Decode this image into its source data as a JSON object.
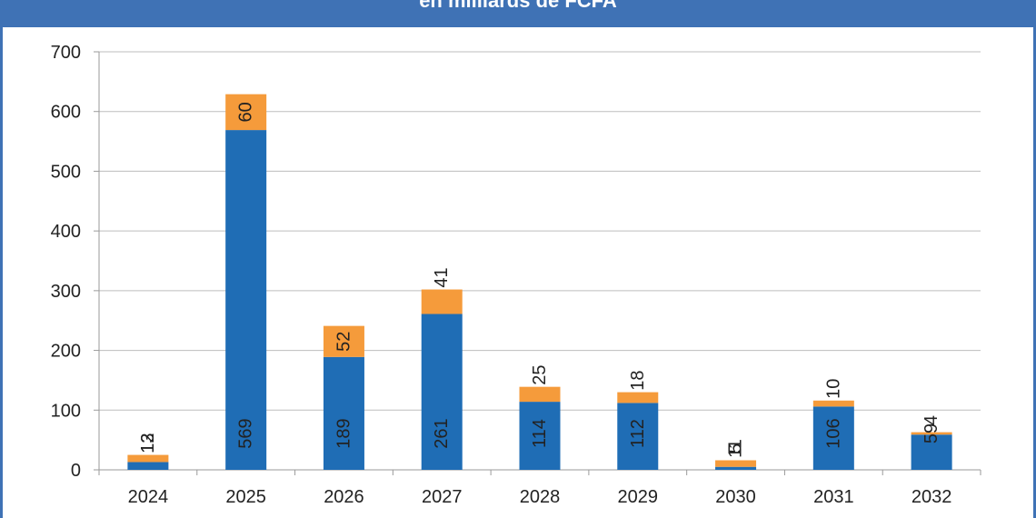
{
  "chart_data": {
    "type": "bar",
    "stacked": true,
    "title": "en milliards de FCFA",
    "categories": [
      "2024",
      "2025",
      "2026",
      "2027",
      "2028",
      "2029",
      "2030",
      "2031",
      "2032"
    ],
    "series": [
      {
        "values": [
          13,
          569,
          189,
          261,
          114,
          112,
          5,
          106,
          59
        ],
        "color": "#1f6db5"
      },
      {
        "values": [
          12,
          60,
          52,
          41,
          25,
          18,
          11,
          10,
          4
        ],
        "color": "#f59b3b"
      }
    ],
    "ylim": [
      0,
      700
    ],
    "yticks": [
      0,
      100,
      200,
      300,
      400,
      500,
      600,
      700
    ],
    "grid": true,
    "legend": "none"
  }
}
